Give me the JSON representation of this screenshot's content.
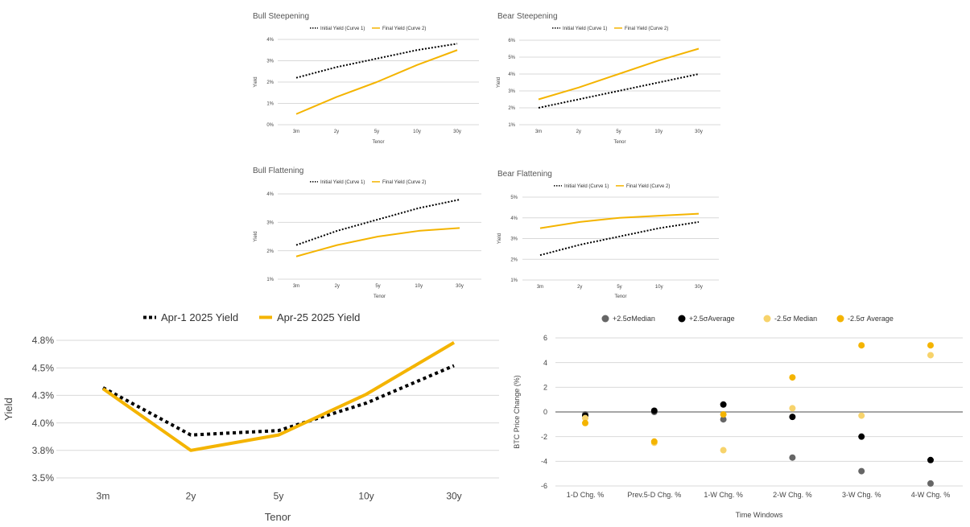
{
  "colors": {
    "initial": "#000000",
    "final": "#f4b400",
    "grid": "#d9d9d9",
    "axis": "#333333",
    "med_pos": "#666666",
    "avg_pos": "#000000",
    "med_neg": "#f7d36b",
    "avg_neg": "#f4b400"
  },
  "chart_data": [
    {
      "type": "line",
      "title": "Bull Steepening",
      "xlabel": "Tenor",
      "ylabel": "Yield",
      "categories": [
        "3m",
        "2y",
        "5y",
        "10y",
        "30y"
      ],
      "yticks": [
        "0%",
        "1%",
        "2%",
        "3%",
        "4%"
      ],
      "ylim": [
        0,
        4
      ],
      "series": [
        {
          "name": "Initial Yield (Curve 1)",
          "style": "dotted",
          "values": [
            2.2,
            2.7,
            3.1,
            3.5,
            3.8
          ]
        },
        {
          "name": "Final Yield (Curve 2)",
          "style": "solid",
          "values": [
            0.5,
            1.3,
            2.0,
            2.8,
            3.5
          ]
        }
      ],
      "legend": "top"
    },
    {
      "type": "line",
      "title": "Bear Steepening",
      "xlabel": "Tenor",
      "ylabel": "Yield",
      "categories": [
        "3m",
        "2y",
        "5y",
        "10y",
        "30y"
      ],
      "yticks": [
        "1%",
        "2%",
        "3%",
        "4%",
        "5%",
        "6%"
      ],
      "ylim": [
        1,
        6
      ],
      "series": [
        {
          "name": "Initial Yield (Curve 1)",
          "style": "dotted",
          "values": [
            2.0,
            2.5,
            3.0,
            3.5,
            4.0
          ]
        },
        {
          "name": "Final Yield (Curve 2)",
          "style": "solid",
          "values": [
            2.5,
            3.2,
            4.0,
            4.8,
            5.5
          ]
        }
      ],
      "legend": "top"
    },
    {
      "type": "line",
      "title": "Bull Flattening",
      "xlabel": "Tenor",
      "ylabel": "Yield",
      "categories": [
        "3m",
        "2y",
        "5y",
        "10y",
        "30y"
      ],
      "yticks": [
        "1%",
        "2%",
        "3%",
        "4%"
      ],
      "ylim": [
        1,
        4
      ],
      "series": [
        {
          "name": "Initial Yield (Curve 1)",
          "style": "dotted",
          "values": [
            2.2,
            2.7,
            3.1,
            3.5,
            3.8
          ]
        },
        {
          "name": "Final Yield (Curve 2)",
          "style": "solid",
          "values": [
            1.8,
            2.2,
            2.5,
            2.7,
            2.8
          ]
        }
      ],
      "legend": "top"
    },
    {
      "type": "line",
      "title": "Bear Flattening",
      "xlabel": "Tenor",
      "ylabel": "Yield",
      "categories": [
        "3m",
        "2y",
        "5y",
        "10y",
        "30y"
      ],
      "yticks": [
        "1%",
        "2%",
        "3%",
        "4%",
        "5%"
      ],
      "ylim": [
        1,
        5
      ],
      "series": [
        {
          "name": "Initial Yield (Curve 1)",
          "style": "dotted",
          "values": [
            2.2,
            2.7,
            3.1,
            3.5,
            3.8
          ]
        },
        {
          "name": "Final Yield (Curve 2)",
          "style": "solid",
          "values": [
            3.5,
            3.8,
            4.0,
            4.1,
            4.2
          ]
        }
      ],
      "legend": "top"
    },
    {
      "type": "line",
      "title": "",
      "xlabel": "Tenor",
      "ylabel": "Yield",
      "categories": [
        "3m",
        "2y",
        "5y",
        "10y",
        "30y"
      ],
      "yticks": [
        "3.5%",
        "3.8%",
        "4.0%",
        "4.3%",
        "4.5%",
        "4.8%"
      ],
      "ytick_values": [
        3.5,
        3.75,
        4.0,
        4.25,
        4.5,
        4.75
      ],
      "ylim": [
        3.5,
        4.75
      ],
      "series": [
        {
          "name": "Apr-1 2025 Yield",
          "style": "dotted",
          "values": [
            4.32,
            3.89,
            3.93,
            4.18,
            4.52
          ]
        },
        {
          "name": "Apr-25 2025 Yield",
          "style": "solid",
          "values": [
            4.31,
            3.75,
            3.89,
            4.26,
            4.73
          ]
        }
      ],
      "legend": "top"
    },
    {
      "type": "scatter",
      "title": "",
      "xlabel": "Time Windows",
      "ylabel": "BTC Price Change (%)",
      "categories": [
        "1-D Chg. %",
        "Prev.5-D Chg. %",
        "1-W Chg. %",
        "2-W Chg. %",
        "3-W Chg. %",
        "4-W Chg. %"
      ],
      "yticks": [
        "-6",
        "-4",
        "-2",
        "0",
        "2",
        "4",
        "6"
      ],
      "ylim": [
        -6,
        6
      ],
      "series": [
        {
          "name": "+2.5σMedian",
          "values": [
            -0.2,
            0.0,
            -0.6,
            -3.7,
            -4.8,
            -5.8
          ]
        },
        {
          "name": "+2.5σAverage",
          "values": [
            -0.3,
            0.1,
            0.6,
            -0.4,
            -2.0,
            -3.9
          ]
        },
        {
          "name": "-2.5σ Median",
          "values": [
            -0.5,
            -2.5,
            -3.1,
            0.3,
            -0.3,
            4.6
          ]
        },
        {
          "name": "-2.5σ Average",
          "values": [
            -0.9,
            -2.4,
            -0.2,
            2.8,
            5.4,
            5.4
          ]
        }
      ],
      "legend": "top"
    }
  ]
}
